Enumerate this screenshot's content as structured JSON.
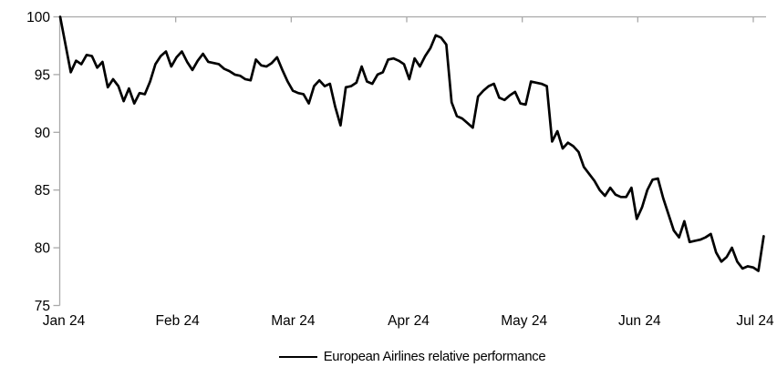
{
  "chart_data": {
    "type": "line",
    "title": "",
    "xlabel": "",
    "ylabel": "",
    "ylim": [
      75,
      100
    ],
    "y_ticks": [
      100,
      95,
      90,
      85,
      80,
      75
    ],
    "x_tick_labels": [
      "Jan 24",
      "Feb 24",
      "Mar 24",
      "Apr 24",
      "May 24",
      "Jun 24",
      "Jul 24"
    ],
    "x_span_months": 6.09,
    "grid": "top axis line only, left value axis with outside ticks, month ticks below top line",
    "legend_position": "bottom-center",
    "axis_color": "#A9A9A9",
    "text_color": "#000000",
    "series": [
      {
        "name": "European Airlines relative performance",
        "color": "#000000",
        "values": [
          100.0,
          97.6,
          95.2,
          96.2,
          95.9,
          96.7,
          96.6,
          95.6,
          96.1,
          93.9,
          94.6,
          94.0,
          92.7,
          93.8,
          92.5,
          93.4,
          93.3,
          94.4,
          95.9,
          96.6,
          97.0,
          95.7,
          96.5,
          97.0,
          96.1,
          95.4,
          96.2,
          96.8,
          96.1,
          96.0,
          95.9,
          95.5,
          95.3,
          95.0,
          94.9,
          94.6,
          94.5,
          96.3,
          95.8,
          95.7,
          96.0,
          96.5,
          95.4,
          94.4,
          93.6,
          93.4,
          93.3,
          92.5,
          94.0,
          94.5,
          94.0,
          94.2,
          92.2,
          90.6,
          93.9,
          94.0,
          94.3,
          95.7,
          94.4,
          94.2,
          95.0,
          95.2,
          96.3,
          96.4,
          96.2,
          95.9,
          94.6,
          96.4,
          95.7,
          96.6,
          97.3,
          98.4,
          98.2,
          97.6,
          92.6,
          91.4,
          91.2,
          90.8,
          90.4,
          93.1,
          93.6,
          94.0,
          94.2,
          93.0,
          92.8,
          93.2,
          93.5,
          92.5,
          92.4,
          94.4,
          94.3,
          94.2,
          94.0,
          89.2,
          90.1,
          88.6,
          89.1,
          88.8,
          88.3,
          87.0,
          86.4,
          85.8,
          85.0,
          84.5,
          85.2,
          84.6,
          84.4,
          84.4,
          85.2,
          82.5,
          83.5,
          85.0,
          85.9,
          86.0,
          84.3,
          82.9,
          81.5,
          80.9,
          82.3,
          80.5,
          80.6,
          80.7,
          80.9,
          81.2,
          79.6,
          78.8,
          79.2,
          80.0,
          78.8,
          78.2,
          78.4,
          78.3,
          78.0,
          81.0
        ]
      }
    ]
  }
}
